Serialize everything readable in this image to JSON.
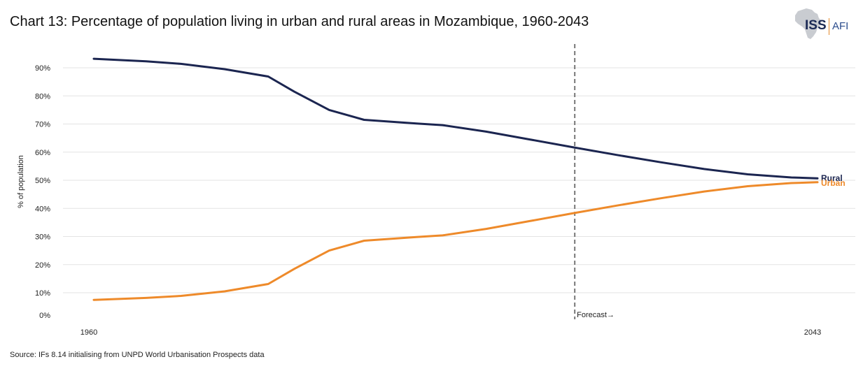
{
  "title": "Chart 13: Percentage of population living in urban and rural areas in Mozambique, 1960-2043",
  "source": "Source: IFs 8.14 initialising from UNPD World Urbanisation Prospects data",
  "logo": {
    "primary": "ISS",
    "secondary": "AFI"
  },
  "chart_data": {
    "type": "line",
    "title": "Chart 13: Percentage of population living in urban and rural areas in Mozambique, 1960-2043",
    "xlabel": "",
    "ylabel": "% of population",
    "xlim": [
      1960,
      2043
    ],
    "ylim": [
      0,
      95
    ],
    "x_tick_labels": [
      "1960",
      "2043"
    ],
    "x_ticks": [
      1960,
      2043
    ],
    "y_ticks": [
      0,
      10,
      20,
      30,
      40,
      50,
      60,
      70,
      80,
      90
    ],
    "y_tick_labels": [
      "0%",
      "10%",
      "20%",
      "30%",
      "40%",
      "50%",
      "60%",
      "70%",
      "80%",
      "90%"
    ],
    "grid": true,
    "forecast_year": 2015,
    "forecast_label": "Forecast→",
    "series": [
      {
        "name": "Rural",
        "color": "#1b2550",
        "x": [
          1960,
          1966,
          1970,
          1975,
          1980,
          1983,
          1987,
          1991,
          1997,
          2000,
          2005,
          2010,
          2015,
          2020,
          2025,
          2030,
          2035,
          2040,
          2043
        ],
        "y": [
          93.2,
          92.3,
          91.4,
          89.5,
          86.9,
          81.5,
          75.0,
          71.5,
          70.2,
          69.6,
          67.3,
          64.5,
          61.7,
          59.0,
          56.4,
          54.0,
          52.1,
          51.0,
          50.7
        ]
      },
      {
        "name": "Urban",
        "color": "#ee8a2a",
        "x": [
          1960,
          1966,
          1970,
          1975,
          1980,
          1983,
          1987,
          1991,
          1997,
          2000,
          2005,
          2010,
          2015,
          2020,
          2025,
          2030,
          2035,
          2040,
          2043
        ],
        "y": [
          6.8,
          7.7,
          8.6,
          10.5,
          13.1,
          18.5,
          25.0,
          28.5,
          29.8,
          30.4,
          32.7,
          35.5,
          38.3,
          41.0,
          43.6,
          46.0,
          47.9,
          49.0,
          49.3
        ]
      }
    ]
  }
}
